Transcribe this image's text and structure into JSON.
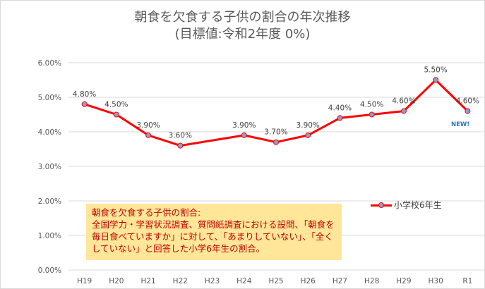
{
  "title": "朝食を欠食する子供の割合の年次推移",
  "subtitle": "(目標値:令和2年度 0%)",
  "new_badge": "NEW!",
  "note": "朝食を欠食する子供の割合:\n全国学力・学習状況調査、質問紙調査における設問、「朝食を毎日食べていますか」に対して、「あまりしていない」、「全くしていない」と回答した小学6年生の割合。",
  "colors": {
    "line": "#ff0000",
    "marker": "#8e9dc9",
    "note_bg": "#ffe699",
    "note_text": "#c00000",
    "grid": "#d9d9d9"
  },
  "chart_data": {
    "type": "line",
    "categories": [
      "H19",
      "H20",
      "H21",
      "H22",
      "H23",
      "H24",
      "H25",
      "H26",
      "H27",
      "H28",
      "H29",
      "H30",
      "R1"
    ],
    "series": [
      {
        "name": "小学校6年生",
        "values": [
          4.8,
          4.5,
          3.9,
          3.6,
          null,
          3.9,
          3.7,
          3.9,
          4.4,
          4.5,
          4.6,
          5.5,
          4.6
        ],
        "labels": [
          "4.80%",
          "4.50%",
          "3.90%",
          "3.60%",
          "",
          "3.90%",
          "3.70%",
          "3.90%",
          "4.40%",
          "4.50%",
          "4.60%",
          "5.50%",
          "4.60%"
        ]
      }
    ],
    "yticks": [
      "0.00%",
      "1.00%",
      "2.00%",
      "3.00%",
      "4.00%",
      "5.00%",
      "6.00%"
    ],
    "ylim": [
      0,
      6
    ],
    "grid": true,
    "legend_position": "right"
  }
}
